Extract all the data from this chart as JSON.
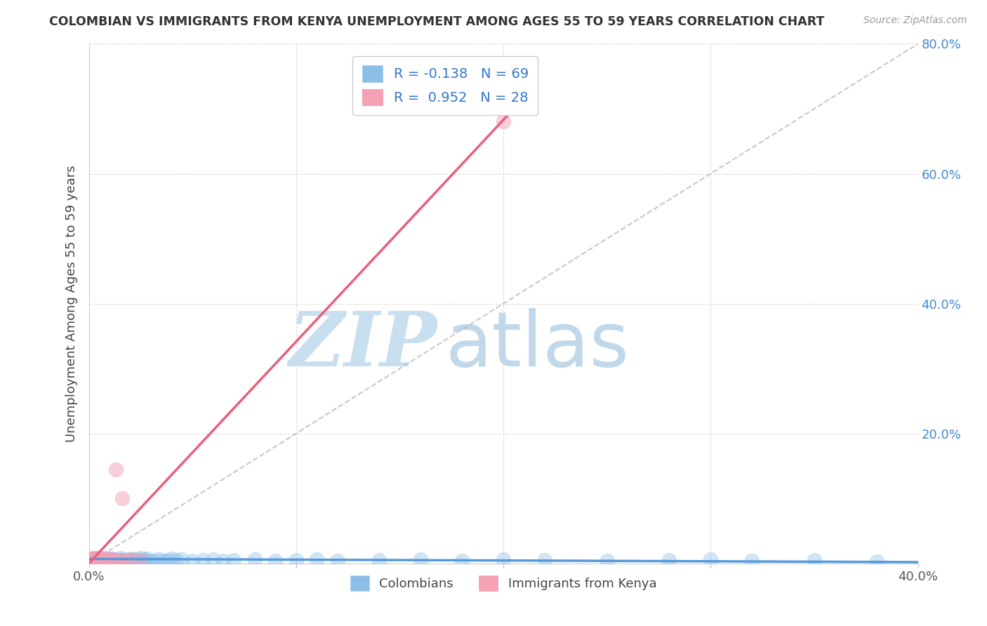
{
  "title": "COLOMBIAN VS IMMIGRANTS FROM KENYA UNEMPLOYMENT AMONG AGES 55 TO 59 YEARS CORRELATION CHART",
  "source": "Source: ZipAtlas.com",
  "ylabel": "Unemployment Among Ages 55 to 59 years",
  "xlim": [
    0.0,
    0.4
  ],
  "ylim": [
    0.0,
    0.8
  ],
  "xticks": [
    0.0,
    0.1,
    0.2,
    0.3,
    0.4
  ],
  "xticklabels": [
    "0.0%",
    "",
    "",
    "",
    "40.0%"
  ],
  "yticks": [
    0.0,
    0.2,
    0.4,
    0.6,
    0.8
  ],
  "right_yticklabels": [
    "",
    "20.0%",
    "40.0%",
    "60.0%",
    "80.0%"
  ],
  "colombian_color": "#8cbfe8",
  "kenya_color": "#f4a0b5",
  "legend_R1": "R = -0.138",
  "legend_N1": "N = 69",
  "legend_R2": "R =  0.952",
  "legend_N2": "N = 28",
  "watermark_zip": "ZIP",
  "watermark_atlas": "atlas",
  "watermark_color": "#cce4f5",
  "colombians_label": "Colombians",
  "kenya_label": "Immigrants from Kenya",
  "blue_line_color": "#5599dd",
  "pink_line_color": "#e8607a",
  "ref_line_color": "#bbbbbb",
  "colombians_x": [
    0.001,
    0.001,
    0.002,
    0.002,
    0.003,
    0.003,
    0.004,
    0.004,
    0.005,
    0.005,
    0.005,
    0.006,
    0.006,
    0.007,
    0.007,
    0.008,
    0.008,
    0.009,
    0.01,
    0.01,
    0.011,
    0.011,
    0.012,
    0.013,
    0.014,
    0.015,
    0.015,
    0.016,
    0.017,
    0.018,
    0.019,
    0.02,
    0.021,
    0.022,
    0.023,
    0.024,
    0.025,
    0.026,
    0.027,
    0.028,
    0.03,
    0.032,
    0.034,
    0.036,
    0.038,
    0.04,
    0.042,
    0.045,
    0.05,
    0.055,
    0.06,
    0.065,
    0.07,
    0.08,
    0.09,
    0.1,
    0.11,
    0.12,
    0.14,
    0.16,
    0.18,
    0.2,
    0.22,
    0.25,
    0.28,
    0.3,
    0.32,
    0.35,
    0.38
  ],
  "colombians_y": [
    0.005,
    0.003,
    0.008,
    0.004,
    0.006,
    0.003,
    0.007,
    0.004,
    0.005,
    0.008,
    0.003,
    0.006,
    0.004,
    0.007,
    0.003,
    0.005,
    0.008,
    0.004,
    0.006,
    0.003,
    0.005,
    0.007,
    0.004,
    0.006,
    0.003,
    0.005,
    0.008,
    0.004,
    0.006,
    0.003,
    0.005,
    0.007,
    0.004,
    0.006,
    0.003,
    0.005,
    0.008,
    0.004,
    0.006,
    0.007,
    0.004,
    0.005,
    0.006,
    0.004,
    0.005,
    0.007,
    0.005,
    0.006,
    0.004,
    0.005,
    0.006,
    0.004,
    0.005,
    0.006,
    0.004,
    0.005,
    0.006,
    0.004,
    0.005,
    0.006,
    0.004,
    0.006,
    0.005,
    0.004,
    0.005,
    0.006,
    0.004,
    0.005,
    0.003
  ],
  "kenya_x": [
    0.001,
    0.001,
    0.002,
    0.002,
    0.003,
    0.003,
    0.004,
    0.004,
    0.005,
    0.005,
    0.005,
    0.006,
    0.006,
    0.007,
    0.007,
    0.008,
    0.009,
    0.01,
    0.011,
    0.012,
    0.013,
    0.014,
    0.015,
    0.016,
    0.018,
    0.02,
    0.025,
    0.2
  ],
  "kenya_y": [
    0.003,
    0.006,
    0.004,
    0.007,
    0.005,
    0.008,
    0.004,
    0.007,
    0.005,
    0.008,
    0.003,
    0.006,
    0.004,
    0.007,
    0.003,
    0.005,
    0.006,
    0.004,
    0.007,
    0.005,
    0.145,
    0.003,
    0.005,
    0.1,
    0.004,
    0.006,
    0.005,
    0.68
  ],
  "blue_trend_x": [
    0.0,
    0.4
  ],
  "blue_trend_y": [
    0.007,
    0.002
  ],
  "pink_trend_x": [
    0.0,
    0.205
  ],
  "pink_trend_y": [
    0.0,
    0.7
  ]
}
